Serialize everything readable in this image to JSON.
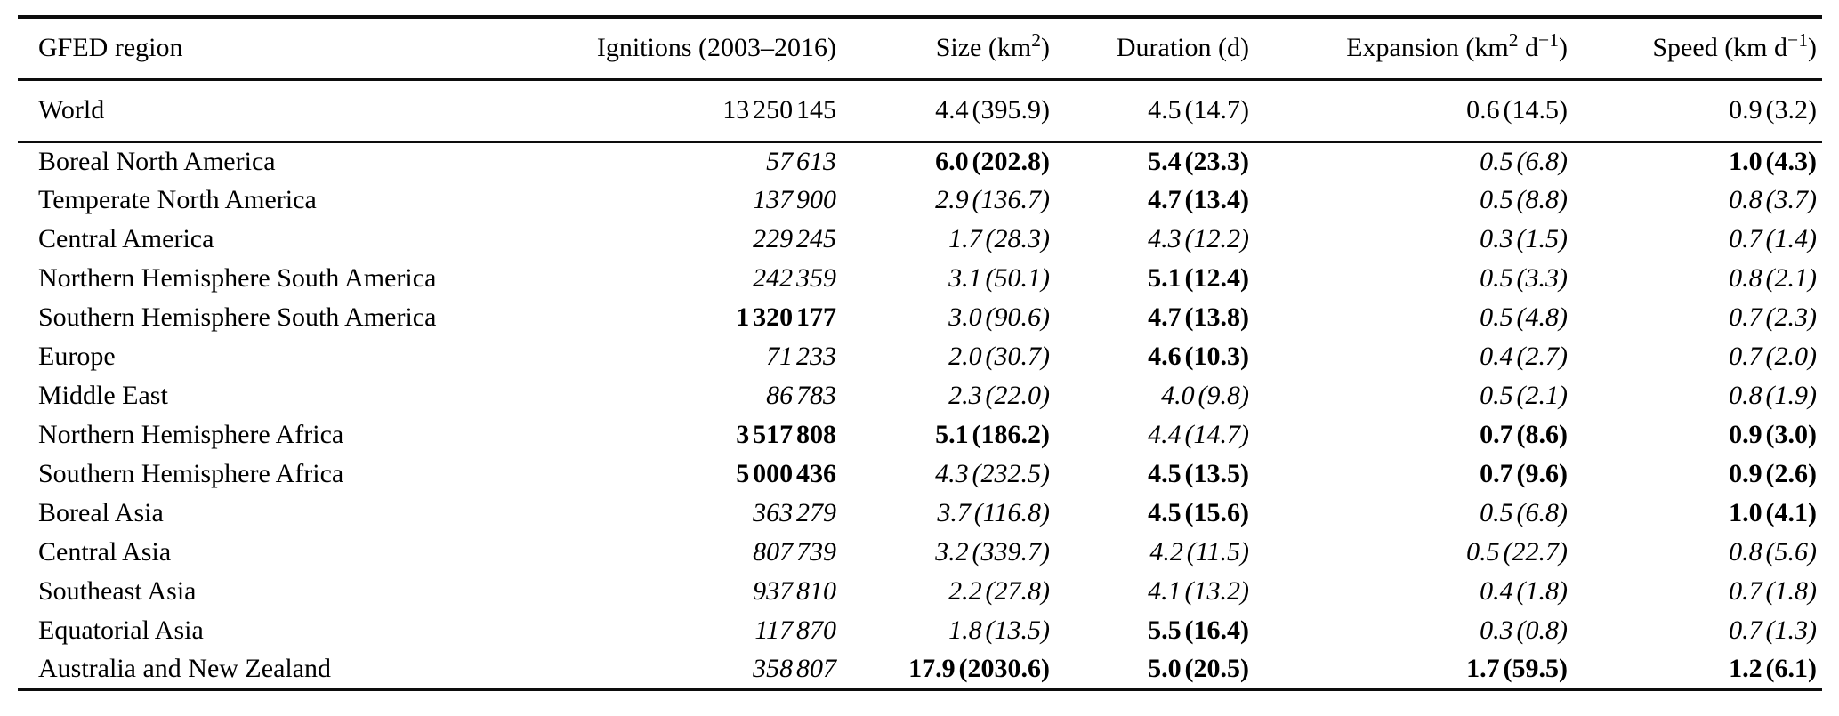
{
  "table": {
    "columns": [
      {
        "id": "region",
        "parts": [
          {
            "t": "GFED region"
          }
        ]
      },
      {
        "id": "ignitions",
        "parts": [
          {
            "t": "Ignitions (2003–2016)"
          }
        ]
      },
      {
        "id": "size",
        "parts": [
          {
            "t": "Size (km"
          },
          {
            "s": "2"
          },
          {
            "t": ")"
          }
        ]
      },
      {
        "id": "duration",
        "parts": [
          {
            "t": "Duration (d)"
          }
        ]
      },
      {
        "id": "expansion",
        "parts": [
          {
            "t": "Expansion (km"
          },
          {
            "s": "2"
          },
          {
            "t": " d"
          },
          {
            "s": "−1"
          },
          {
            "t": ")"
          }
        ]
      },
      {
        "id": "speed",
        "parts": [
          {
            "t": "Speed (km d"
          },
          {
            "s": "−1"
          },
          {
            "t": ")"
          }
        ]
      }
    ],
    "world_row": {
      "region": "World",
      "cells": [
        {
          "text": "13 250 145",
          "style": "normal"
        },
        {
          "text": "4.4 (395.9)",
          "style": "normal"
        },
        {
          "text": "4.5 (14.7)",
          "style": "normal"
        },
        {
          "text": "0.6 (14.5)",
          "style": "normal"
        },
        {
          "text": "0.9 (3.2)",
          "style": "normal"
        }
      ]
    },
    "rows": [
      {
        "region": "Boreal North America",
        "cells": [
          {
            "text": "57 613",
            "style": "italic"
          },
          {
            "text": "6.0 (202.8)",
            "style": "bold"
          },
          {
            "text": "5.4 (23.3)",
            "style": "bold"
          },
          {
            "text": "0.5 (6.8)",
            "style": "italic"
          },
          {
            "text": "1.0 (4.3)",
            "style": "bold"
          }
        ]
      },
      {
        "region": "Temperate North America",
        "cells": [
          {
            "text": "137 900",
            "style": "italic"
          },
          {
            "text": "2.9 (136.7)",
            "style": "italic"
          },
          {
            "text": "4.7 (13.4)",
            "style": "bold"
          },
          {
            "text": "0.5 (8.8)",
            "style": "italic"
          },
          {
            "text": "0.8 (3.7)",
            "style": "italic"
          }
        ]
      },
      {
        "region": "Central America",
        "cells": [
          {
            "text": "229 245",
            "style": "italic"
          },
          {
            "text": "1.7 (28.3)",
            "style": "italic"
          },
          {
            "text": "4.3 (12.2)",
            "style": "italic"
          },
          {
            "text": "0.3 (1.5)",
            "style": "italic"
          },
          {
            "text": "0.7 (1.4)",
            "style": "italic"
          }
        ]
      },
      {
        "region": "Northern Hemisphere South America",
        "cells": [
          {
            "text": "242 359",
            "style": "italic"
          },
          {
            "text": "3.1 (50.1)",
            "style": "italic"
          },
          {
            "text": "5.1 (12.4)",
            "style": "bold"
          },
          {
            "text": "0.5 (3.3)",
            "style": "italic"
          },
          {
            "text": "0.8 (2.1)",
            "style": "italic"
          }
        ]
      },
      {
        "region": "Southern Hemisphere South America",
        "cells": [
          {
            "text": "1 320 177",
            "style": "bold"
          },
          {
            "text": "3.0 (90.6)",
            "style": "italic"
          },
          {
            "text": "4.7 (13.8)",
            "style": "bold"
          },
          {
            "text": "0.5 (4.8)",
            "style": "italic"
          },
          {
            "text": "0.7 (2.3)",
            "style": "italic"
          }
        ]
      },
      {
        "region": "Europe",
        "cells": [
          {
            "text": "71 233",
            "style": "italic"
          },
          {
            "text": "2.0 (30.7)",
            "style": "italic"
          },
          {
            "text": "4.6 (10.3)",
            "style": "bold"
          },
          {
            "text": "0.4 (2.7)",
            "style": "italic"
          },
          {
            "text": "0.7 (2.0)",
            "style": "italic"
          }
        ]
      },
      {
        "region": "Middle East",
        "cells": [
          {
            "text": "86 783",
            "style": "italic"
          },
          {
            "text": "2.3 (22.0)",
            "style": "italic"
          },
          {
            "text": "4.0 (9.8)",
            "style": "italic"
          },
          {
            "text": "0.5 (2.1)",
            "style": "italic"
          },
          {
            "text": "0.8 (1.9)",
            "style": "italic"
          }
        ]
      },
      {
        "region": "Northern Hemisphere Africa",
        "cells": [
          {
            "text": "3 517 808",
            "style": "bold"
          },
          {
            "text": "5.1 (186.2)",
            "style": "bold"
          },
          {
            "text": "4.4 (14.7)",
            "style": "italic"
          },
          {
            "text": "0.7 (8.6)",
            "style": "bold"
          },
          {
            "text": "0.9 (3.0)",
            "style": "bold"
          }
        ]
      },
      {
        "region": "Southern Hemisphere Africa",
        "cells": [
          {
            "text": "5 000 436",
            "style": "bold"
          },
          {
            "text": "4.3 (232.5)",
            "style": "italic"
          },
          {
            "text": "4.5 (13.5)",
            "style": "bold"
          },
          {
            "text": "0.7 (9.6)",
            "style": "bold"
          },
          {
            "text": "0.9 (2.6)",
            "style": "bold"
          }
        ]
      },
      {
        "region": "Boreal Asia",
        "cells": [
          {
            "text": "363 279",
            "style": "italic"
          },
          {
            "text": "3.7 (116.8)",
            "style": "italic"
          },
          {
            "text": "4.5 (15.6)",
            "style": "bold"
          },
          {
            "text": "0.5 (6.8)",
            "style": "italic"
          },
          {
            "text": "1.0 (4.1)",
            "style": "bold"
          }
        ]
      },
      {
        "region": "Central Asia",
        "cells": [
          {
            "text": "807 739",
            "style": "italic"
          },
          {
            "text": "3.2 (339.7)",
            "style": "italic"
          },
          {
            "text": "4.2 (11.5)",
            "style": "italic"
          },
          {
            "text": "0.5 (22.7)",
            "style": "italic"
          },
          {
            "text": "0.8 (5.6)",
            "style": "italic"
          }
        ]
      },
      {
        "region": "Southeast Asia",
        "cells": [
          {
            "text": "937 810",
            "style": "italic"
          },
          {
            "text": "2.2 (27.8)",
            "style": "italic"
          },
          {
            "text": "4.1 (13.2)",
            "style": "italic"
          },
          {
            "text": "0.4 (1.8)",
            "style": "italic"
          },
          {
            "text": "0.7 (1.8)",
            "style": "italic"
          }
        ]
      },
      {
        "region": "Equatorial Asia",
        "cells": [
          {
            "text": "117 870",
            "style": "italic"
          },
          {
            "text": "1.8 (13.5)",
            "style": "italic"
          },
          {
            "text": "5.5 (16.4)",
            "style": "bold"
          },
          {
            "text": "0.3 (0.8)",
            "style": "italic"
          },
          {
            "text": "0.7 (1.3)",
            "style": "italic"
          }
        ]
      },
      {
        "region": "Australia and New Zealand",
        "cells": [
          {
            "text": "358 807",
            "style": "italic"
          },
          {
            "text": "17.9 (2030.6)",
            "style": "bold"
          },
          {
            "text": "5.0 (20.5)",
            "style": "bold"
          },
          {
            "text": "1.7 (59.5)",
            "style": "bold"
          },
          {
            "text": "1.2 (6.1)",
            "style": "bold"
          }
        ]
      }
    ]
  }
}
